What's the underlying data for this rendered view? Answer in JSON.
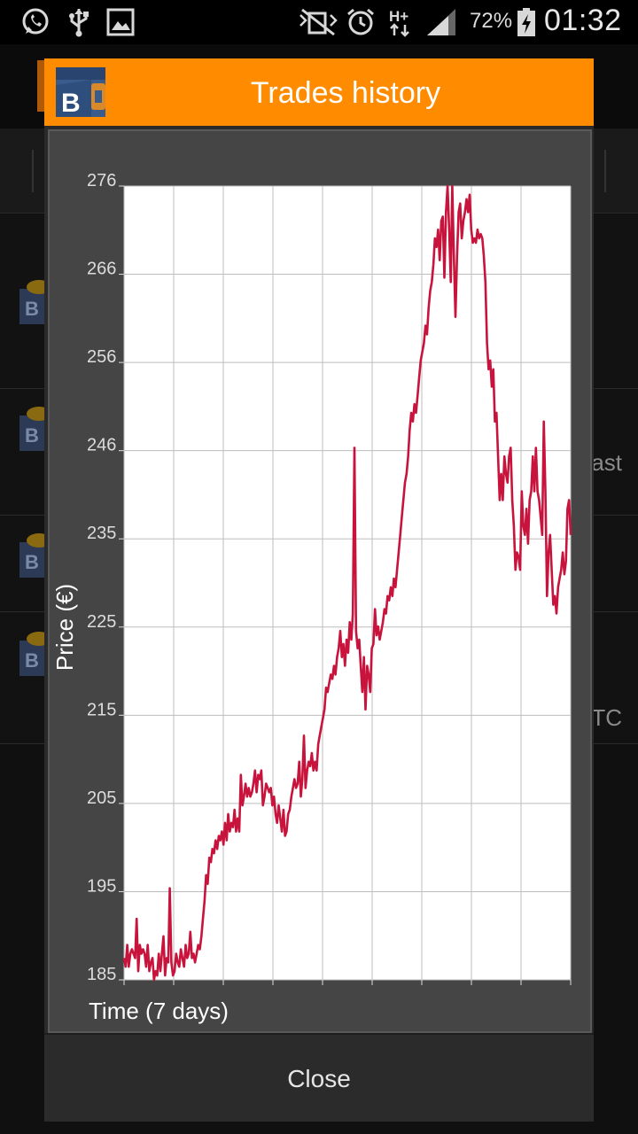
{
  "status_bar": {
    "battery_percent": "72%",
    "time": "01:32",
    "icons": [
      "whatsapp-icon",
      "usb-icon",
      "gallery-icon",
      "mute-icon",
      "alarm-icon",
      "hplus-data-icon",
      "signal-icon",
      "battery-charging-icon"
    ]
  },
  "background": {
    "row_texts": [
      "ast",
      "TC"
    ]
  },
  "dialog": {
    "title": "Trades history",
    "icon": "bitcoin-wallet-icon",
    "close_label": "Close",
    "header_color": "#ff8c00"
  },
  "chart_data": {
    "type": "line",
    "title": "",
    "xlabel": "Time (7 days)",
    "ylabel": "Price (€)",
    "ylim": [
      185,
      276
    ],
    "y_ticks": [
      185,
      195,
      205,
      215,
      225,
      235,
      246,
      256,
      266,
      276
    ],
    "x_gridlines": 9,
    "grid": true,
    "line_color": "#c8143c",
    "series": [
      {
        "values": [
          187.5,
          186.5,
          189,
          186.5,
          188,
          188.5,
          188,
          187.5,
          192,
          186,
          189,
          188,
          188.5,
          188,
          186.5,
          189,
          186,
          187,
          187.5,
          185,
          186,
          185.5,
          188,
          186,
          188,
          190,
          185.5,
          187.5,
          187,
          195.5,
          187,
          185.5,
          186,
          188,
          187,
          186.5,
          188.5,
          187.5,
          186.5,
          189,
          187.5,
          188,
          190.5,
          187.5,
          188,
          187,
          188,
          189,
          188.5,
          190,
          192,
          194,
          197,
          196,
          199,
          198.5,
          200,
          199.5,
          201,
          200,
          201.5,
          201,
          202,
          200.5,
          203,
          201,
          204,
          202,
          203,
          202.5,
          204.5,
          202,
          203.5,
          202,
          208.5,
          205,
          206,
          207.5,
          206,
          207,
          206,
          206.5,
          207.5,
          209,
          206.5,
          208.5,
          208,
          209,
          205,
          206,
          207.5,
          207,
          206.5,
          207,
          205,
          206,
          204,
          203,
          205,
          203.5,
          202,
          204.5,
          201.5,
          202,
          204,
          204.5,
          206,
          207,
          208,
          207,
          207.5,
          210,
          206,
          208,
          213,
          207,
          209,
          210,
          209.5,
          211,
          209,
          210,
          209,
          212,
          213,
          214,
          215,
          216,
          218.5,
          218,
          219,
          220,
          219.5,
          221,
          220,
          222,
          223,
          225,
          222,
          223.5,
          221,
          224,
          222.5,
          226,
          224,
          227,
          246,
          225,
          223,
          224,
          221,
          218,
          222,
          216,
          221,
          220,
          218,
          223,
          223.5,
          227.5,
          224.5,
          225.5,
          224,
          225,
          226,
          227.5,
          227,
          229,
          228.5,
          230,
          229,
          231,
          230,
          232,
          234,
          236,
          238,
          240,
          242,
          243,
          245,
          248,
          250,
          249,
          251,
          250,
          252,
          254,
          256,
          257,
          258,
          260,
          259,
          262,
          264,
          265,
          267,
          270,
          269,
          271,
          267.5,
          272,
          272.5,
          265.5,
          273,
          276,
          271,
          265,
          276,
          268,
          261,
          268,
          273,
          274,
          270,
          272,
          273,
          274.5,
          273,
          275,
          271,
          269.5,
          270,
          269.5,
          271,
          270,
          270.5,
          270,
          268,
          265,
          258,
          255,
          256,
          253,
          255,
          249,
          250,
          245,
          240,
          243,
          240,
          245,
          243,
          242,
          245,
          246,
          240,
          237,
          232,
          234,
          233.5,
          232,
          241,
          237,
          236,
          239,
          235,
          240,
          241,
          245,
          241,
          246,
          241,
          240,
          238,
          236,
          249,
          241,
          229,
          234,
          236,
          232,
          228,
          229,
          227,
          230,
          231,
          232,
          234,
          231.5,
          233,
          239,
          240,
          236
        ]
      }
    ]
  }
}
